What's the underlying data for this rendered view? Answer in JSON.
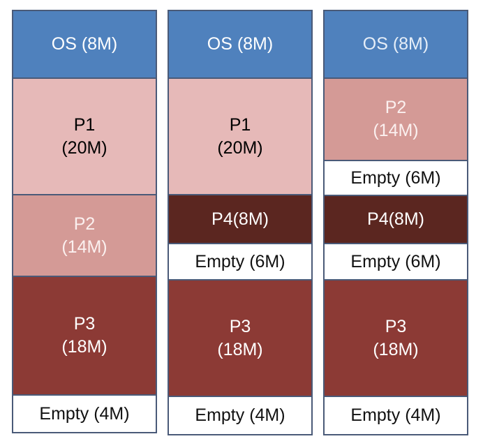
{
  "columns": [
    {
      "blocks": [
        {
          "line1": "OS (8M)",
          "line2": ""
        },
        {
          "line1": "P1",
          "line2": "(20M)"
        },
        {
          "line1": "P2",
          "line2": "(14M)"
        },
        {
          "line1": "P3",
          "line2": "(18M)"
        },
        {
          "line1": "Empty (4M)",
          "line2": ""
        }
      ]
    },
    {
      "blocks": [
        {
          "line1": "OS (8M)",
          "line2": ""
        },
        {
          "line1": "P1",
          "line2": "(20M)"
        },
        {
          "line1": "P4(8M)",
          "line2": ""
        },
        {
          "line1": "Empty (6M)",
          "line2": ""
        },
        {
          "line1": "P3",
          "line2": "(18M)"
        },
        {
          "line1": "Empty (4M)",
          "line2": ""
        }
      ]
    },
    {
      "blocks": [
        {
          "line1": "OS (8M)",
          "line2": ""
        },
        {
          "line1": "P2",
          "line2": "(14M)"
        },
        {
          "line1": "Empty (6M)",
          "line2": ""
        },
        {
          "line1": "P4(8M)",
          "line2": ""
        },
        {
          "line1": "Empty (6M)",
          "line2": ""
        },
        {
          "line1": "P3",
          "line2": "(18M)"
        },
        {
          "line1": "Empty (4M)",
          "line2": ""
        }
      ]
    }
  ],
  "colors": {
    "os": "#4f81bd",
    "p1": "#e6b9b8",
    "p2": "#d49a96",
    "p3": "#8c3a35",
    "p4": "#5b2620",
    "empty": "#ffffff",
    "border": "#4a5a78"
  }
}
